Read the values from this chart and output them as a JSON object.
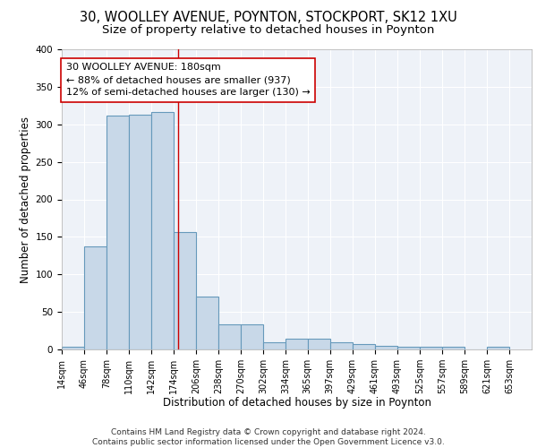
{
  "title_line1": "30, WOOLLEY AVENUE, POYNTON, STOCKPORT, SK12 1XU",
  "title_line2": "Size of property relative to detached houses in Poynton",
  "xlabel": "Distribution of detached houses by size in Poynton",
  "ylabel": "Number of detached properties",
  "footer_line1": "Contains HM Land Registry data © Crown copyright and database right 2024.",
  "footer_line2": "Contains public sector information licensed under the Open Government Licence v3.0.",
  "annotation_line1": "30 WOOLLEY AVENUE: 180sqm",
  "annotation_line2": "← 88% of detached houses are smaller (937)",
  "annotation_line3": "12% of semi-detached houses are larger (130) →",
  "bar_left_edges": [
    14,
    46,
    78,
    110,
    142,
    174,
    206,
    238,
    270,
    302,
    334,
    365,
    397,
    429,
    461,
    493,
    525,
    557,
    589,
    621
  ],
  "bar_heights": [
    4,
    137,
    312,
    313,
    317,
    157,
    71,
    33,
    33,
    10,
    14,
    14,
    9,
    7,
    5,
    3,
    3,
    3,
    0,
    3
  ],
  "bin_width": 32,
  "bar_color": "#c8d8e8",
  "bar_edge_color": "#6699bb",
  "vline_x": 180,
  "vline_color": "#cc0000",
  "tick_labels": [
    "14sqm",
    "46sqm",
    "78sqm",
    "110sqm",
    "142sqm",
    "174sqm",
    "206sqm",
    "238sqm",
    "270sqm",
    "302sqm",
    "334sqm",
    "365sqm",
    "397sqm",
    "429sqm",
    "461sqm",
    "493sqm",
    "525sqm",
    "557sqm",
    "589sqm",
    "621sqm",
    "653sqm"
  ],
  "tick_positions": [
    14,
    46,
    78,
    110,
    142,
    174,
    206,
    238,
    270,
    302,
    334,
    365,
    397,
    429,
    461,
    493,
    525,
    557,
    589,
    621,
    653
  ],
  "ylim": [
    0,
    400
  ],
  "xlim": [
    14,
    685
  ],
  "yticks": [
    0,
    50,
    100,
    150,
    200,
    250,
    300,
    350,
    400
  ],
  "plot_bg_color": "#eef2f8",
  "grid_color": "#ffffff",
  "title_fontsize": 10.5,
  "subtitle_fontsize": 9.5,
  "axis_label_fontsize": 8.5,
  "tick_fontsize": 7,
  "annotation_fontsize": 8,
  "footer_fontsize": 6.5
}
